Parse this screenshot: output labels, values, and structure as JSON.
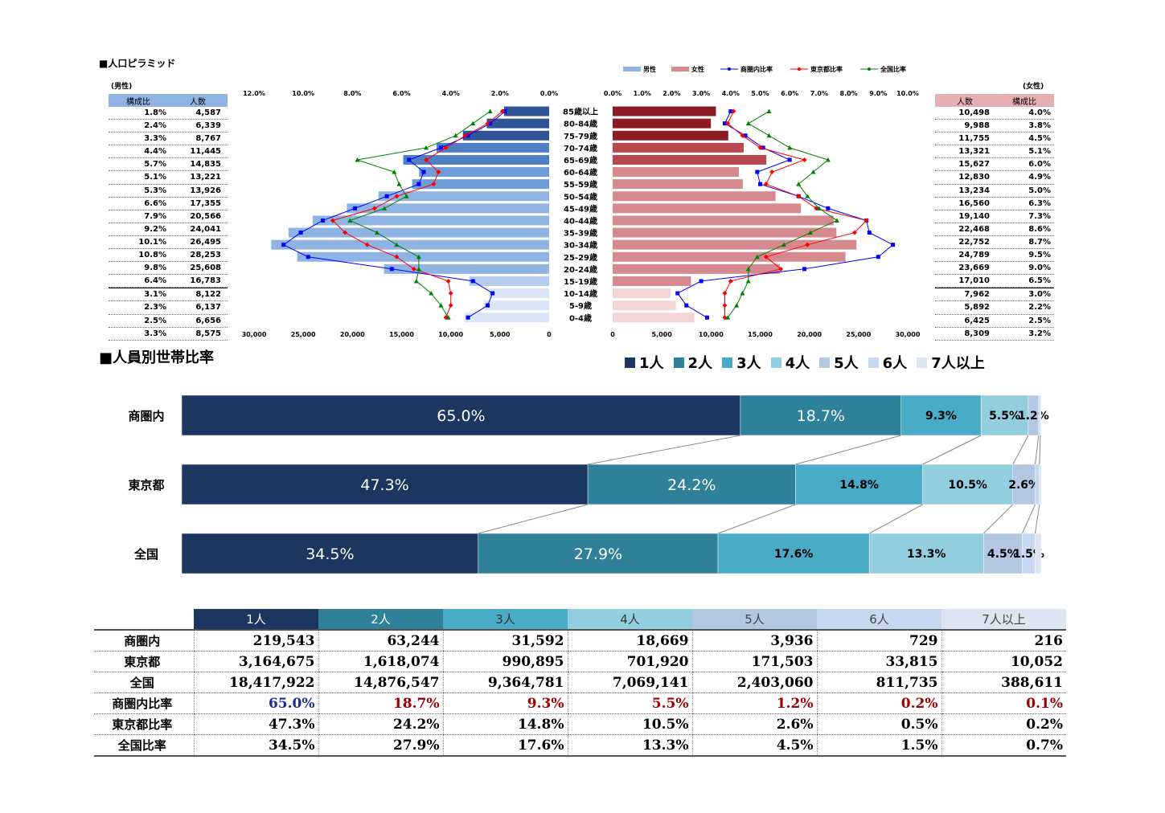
{
  "titles": {
    "pyramid": "■人口ピラミッド",
    "household": "■人員別世帯比率"
  },
  "pyramid": {
    "male_label": "(男性)",
    "female_label": "(女性)",
    "col_ratio": "構成比",
    "col_people": "人数",
    "legend": [
      "男性",
      "女性",
      "商圏内比率",
      "東京都比率",
      "全国比率"
    ]
  },
  "chart_data": [
    {
      "type": "bar",
      "title": "人口ピラミッド",
      "categories": [
        "85歳以上",
        "80-84歳",
        "75-79歳",
        "70-74歳",
        "65-69歳",
        "60-64歳",
        "55-59歳",
        "50-54歳",
        "45-49歳",
        "40-44歳",
        "35-39歳",
        "30-34歳",
        "25-29歳",
        "20-24歳",
        "15-19歳",
        "10-14歳",
        "5-9歳",
        "0-4歳"
      ],
      "male_axis_ticks": [
        "30,000",
        "25,000",
        "20,000",
        "15,000",
        "10,000",
        "5,000",
        "0"
      ],
      "female_axis_ticks": [
        "0",
        "5,000",
        "10,000",
        "15,000",
        "20,000",
        "25,000",
        "30,000"
      ],
      "male_pct_ticks": [
        "12.0%",
        "10.0%",
        "8.0%",
        "6.0%",
        "4.0%",
        "2.0%",
        "0.0%"
      ],
      "female_pct_ticks": [
        "0.0%",
        "1.0%",
        "2.0%",
        "3.0%",
        "4.0%",
        "5.0%",
        "6.0%",
        "7.0%",
        "8.0%",
        "9.0%",
        "10.0%"
      ],
      "male_max": 30000,
      "male_pct_max": 12,
      "female_max": 30000,
      "female_pct_max": 10,
      "series": [
        {
          "name": "男性",
          "values": [
            4587,
            6339,
            8767,
            11445,
            14835,
            13221,
            13926,
            17355,
            20566,
            24041,
            26495,
            28253,
            25608,
            16783,
            8122,
            6137,
            6656,
            8575
          ]
        },
        {
          "name": "女性",
          "values": [
            10498,
            9988,
            11755,
            13321,
            15627,
            12830,
            13234,
            16560,
            19140,
            22468,
            22752,
            24789,
            23669,
            17010,
            7962,
            5892,
            6425,
            8309
          ]
        },
        {
          "name": "商圏内比率",
          "male": [
            1.8,
            2.4,
            3.3,
            4.4,
            5.7,
            5.1,
            5.3,
            6.6,
            7.9,
            9.2,
            10.1,
            10.8,
            9.8,
            6.4,
            3.1,
            2.3,
            2.5,
            3.3
          ],
          "female": [
            4.0,
            3.8,
            4.5,
            5.1,
            6.0,
            4.9,
            5.0,
            6.3,
            7.3,
            8.6,
            8.7,
            9.5,
            9.0,
            6.5,
            3.0,
            2.2,
            2.5,
            3.2
          ]
        },
        {
          "name": "東京都比率",
          "male": [
            1.9,
            2.5,
            3.4,
            4.2,
            5.0,
            4.5,
            4.7,
            6.2,
            7.1,
            8.8,
            8.3,
            7.4,
            6.2,
            5.5,
            4.1,
            4.0,
            4.0,
            4.2
          ],
          "female": [
            4.1,
            3.9,
            4.4,
            5.0,
            6.5,
            5.4,
            5.2,
            6.3,
            6.9,
            8.6,
            8.2,
            6.6,
            5.2,
            5.7,
            4.0,
            3.8,
            3.8,
            3.8
          ]
        },
        {
          "name": "全国比率",
          "male": [
            2.4,
            3.1,
            3.8,
            5.0,
            7.8,
            6.3,
            6.1,
            5.8,
            6.7,
            8.1,
            7.0,
            6.2,
            5.3,
            5.3,
            5.4,
            4.8,
            4.4,
            4.1
          ],
          "female": [
            5.3,
            4.6,
            5.3,
            6.0,
            7.3,
            6.8,
            6.3,
            6.6,
            7.0,
            7.6,
            6.7,
            5.8,
            4.9,
            4.6,
            4.6,
            4.4,
            4.2,
            3.9
          ]
        }
      ],
      "male_ratio_labels": [
        "1.8%",
        "2.4%",
        "3.3%",
        "4.4%",
        "5.7%",
        "5.1%",
        "5.3%",
        "6.6%",
        "7.9%",
        "9.2%",
        "10.1%",
        "10.8%",
        "9.8%",
        "6.4%",
        "3.1%",
        "2.3%",
        "2.5%",
        "3.3%"
      ],
      "male_people_labels": [
        "4,587",
        "6,339",
        "8,767",
        "11,445",
        "14,835",
        "13,221",
        "13,926",
        "17,355",
        "20,566",
        "24,041",
        "26,495",
        "28,253",
        "25,608",
        "16,783",
        "8,122",
        "6,137",
        "6,656",
        "8,575"
      ],
      "female_people_labels": [
        "10,498",
        "9,988",
        "11,755",
        "13,321",
        "15,627",
        "12,830",
        "13,234",
        "16,560",
        "19,140",
        "22,468",
        "22,752",
        "24,789",
        "23,669",
        "17,010",
        "7,962",
        "5,892",
        "6,425",
        "8,309"
      ],
      "female_ratio_labels": [
        "4.0%",
        "3.8%",
        "4.5%",
        "5.1%",
        "6.0%",
        "4.9%",
        "5.0%",
        "6.3%",
        "7.3%",
        "8.6%",
        "8.7%",
        "9.5%",
        "9.0%",
        "6.5%",
        "3.0%",
        "2.2%",
        "2.5%",
        "3.2%"
      ],
      "male_colors": [
        "#2f5597",
        "#2f5597",
        "#2f5597",
        "#4f7fc4",
        "#4f7fc4",
        "#6f9bd6",
        "#6f9bd6",
        "#8fb4e3",
        "#8fb4e3",
        "#8fb4e3",
        "#8fb4e3",
        "#8fb4e3",
        "#8fb4e3",
        "#8fb4e3",
        "#b4cdee",
        "#dae6f7",
        "#dae6f7",
        "#dae6f7"
      ],
      "female_colors": [
        "#8b1c24",
        "#8b1c24",
        "#8b1c24",
        "#b8474f",
        "#b8474f",
        "#d68a8f",
        "#d68a8f",
        "#d68a8f",
        "#d68a8f",
        "#d68a8f",
        "#d68a8f",
        "#d68a8f",
        "#d68a8f",
        "#d68a8f",
        "#d68a8f",
        "#f3d5d6",
        "#f3d5d6",
        "#f3d5d6"
      ],
      "line_colors": [
        "#0000ff",
        "#ff0000",
        "#008000"
      ]
    },
    {
      "type": "bar",
      "title": "人員別世帯比率",
      "categories": [
        "商圏内",
        "東京都",
        "全国"
      ],
      "legend": [
        "1人",
        "2人",
        "3人",
        "4人",
        "5人",
        "6人",
        "7人以上"
      ],
      "colors": [
        "#1b365f",
        "#2e8199",
        "#4aabc7",
        "#92cde0",
        "#b3c6e2",
        "#c6d9f1",
        "#dce6f2"
      ],
      "values": [
        [
          65.0,
          18.7,
          9.3,
          5.5,
          1.2,
          0.2,
          0.1
        ],
        [
          47.3,
          24.2,
          14.8,
          10.5,
          2.6,
          0.5,
          0.2
        ],
        [
          34.5,
          27.9,
          17.6,
          13.3,
          4.5,
          1.5,
          0.7
        ]
      ],
      "labels": [
        [
          "65.0%",
          "18.7%",
          "9.3%",
          "5.5%",
          "1.2%",
          "",
          ""
        ],
        [
          "47.3%",
          "24.2%",
          "14.8%",
          "10.5%",
          "2.6%",
          "",
          ""
        ],
        [
          "34.5%",
          "27.9%",
          "17.6%",
          "13.3%",
          "4.5%",
          "1.5%",
          ""
        ]
      ]
    }
  ],
  "table": {
    "headers": [
      "1人",
      "2人",
      "3人",
      "4人",
      "5人",
      "6人",
      "7人以上"
    ],
    "rows": [
      {
        "label": "商圏内",
        "values": [
          "219,543",
          "63,244",
          "31,592",
          "18,669",
          "3,936",
          "729",
          "216"
        ]
      },
      {
        "label": "東京都",
        "values": [
          "3,164,675",
          "1,618,074",
          "990,895",
          "701,920",
          "171,503",
          "33,815",
          "10,052"
        ]
      },
      {
        "label": "全国",
        "values": [
          "18,417,922",
          "14,876,547",
          "9,364,781",
          "7,069,141",
          "2,403,060",
          "811,735",
          "388,611"
        ]
      },
      {
        "label": "商圏内比率",
        "values": [
          "65.0%",
          "18.7%",
          "9.3%",
          "5.5%",
          "1.2%",
          "0.2%",
          "0.1%"
        ]
      },
      {
        "label": "東京都比率",
        "values": [
          "47.3%",
          "24.2%",
          "14.8%",
          "10.5%",
          "2.6%",
          "0.5%",
          "0.2%"
        ]
      },
      {
        "label": "全国比率",
        "values": [
          "34.5%",
          "27.9%",
          "17.6%",
          "13.3%",
          "4.5%",
          "1.5%",
          "0.7%"
        ]
      }
    ]
  }
}
